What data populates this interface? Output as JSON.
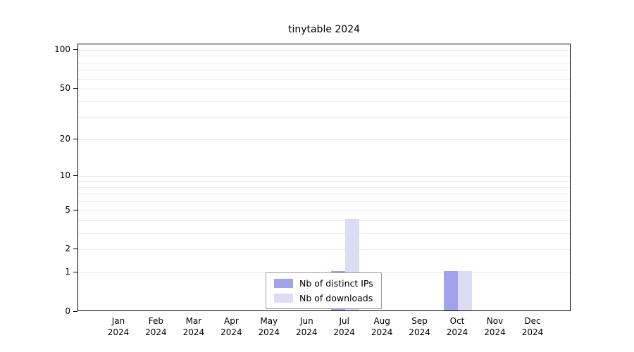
{
  "chart_data": {
    "type": "bar",
    "title": "tinytable 2024",
    "categories": [
      {
        "month": "Jan",
        "year": "2024"
      },
      {
        "month": "Feb",
        "year": "2024"
      },
      {
        "month": "Mar",
        "year": "2024"
      },
      {
        "month": "Apr",
        "year": "2024"
      },
      {
        "month": "May",
        "year": "2024"
      },
      {
        "month": "Jun",
        "year": "2024"
      },
      {
        "month": "Jul",
        "year": "2024"
      },
      {
        "month": "Aug",
        "year": "2024"
      },
      {
        "month": "Sep",
        "year": "2024"
      },
      {
        "month": "Oct",
        "year": "2024"
      },
      {
        "month": "Nov",
        "year": "2024"
      },
      {
        "month": "Dec",
        "year": "2024"
      }
    ],
    "series": [
      {
        "name": "Nb of distinct IPs",
        "color": "#a2a2ec",
        "values": [
          0,
          0,
          0,
          0,
          0,
          0,
          1,
          0,
          0,
          1,
          0,
          0
        ]
      },
      {
        "name": "Nb of downloads",
        "color": "#dcdcf7",
        "values": [
          0,
          0,
          0,
          0,
          0,
          0,
          4,
          0,
          0,
          1,
          0,
          0
        ]
      }
    ],
    "yscale": "log1p",
    "ylim": [
      0,
      100
    ],
    "yticks": [
      0,
      1,
      2,
      5,
      10,
      20,
      50,
      100
    ],
    "minor_gridlines": [
      1,
      2,
      3,
      4,
      5,
      6,
      7,
      8,
      9,
      10,
      20,
      30,
      40,
      50,
      60,
      70,
      80,
      90,
      100
    ],
    "grid": true,
    "legend_position": "bottom-center"
  }
}
